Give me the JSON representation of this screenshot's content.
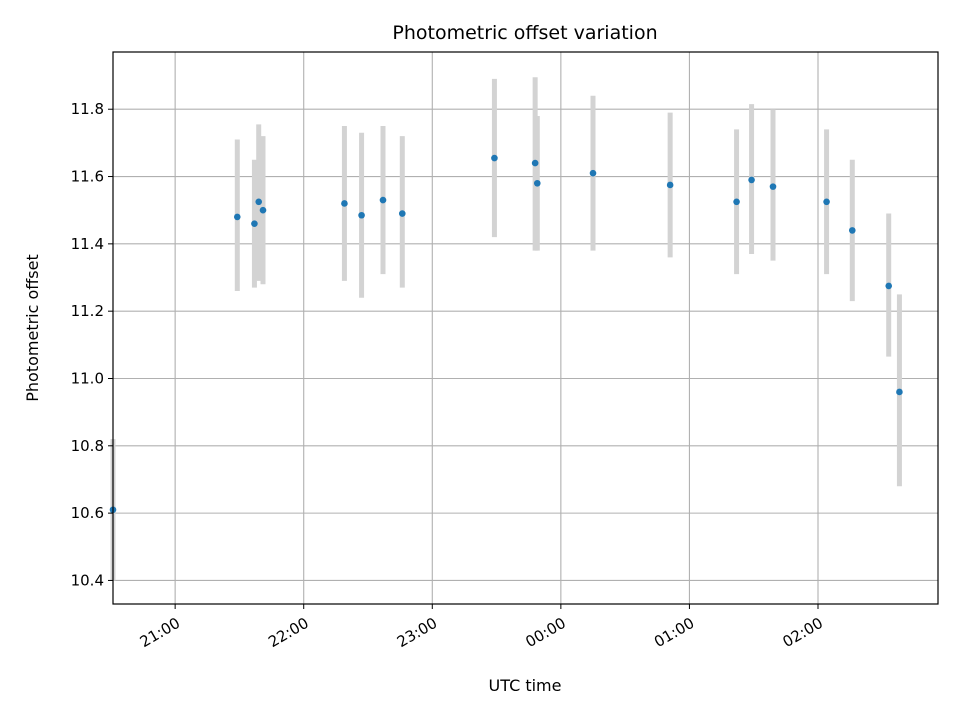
{
  "chart_data": {
    "type": "scatter",
    "title": "Photometric offset variation",
    "xlabel": "UTC time",
    "ylabel": "Photometric offset",
    "grid": true,
    "x_unit": "UTC (clock time, night crossing midnight)",
    "xlim": [
      "20:38",
      "02:56"
    ],
    "xticks": [
      "21:00",
      "22:00",
      "23:00",
      "00:00",
      "01:00",
      "02:00"
    ],
    "ylim": [
      10.33,
      11.97
    ],
    "yticks": [
      "10.4",
      "10.6",
      "10.8",
      "11.0",
      "11.2",
      "11.4",
      "11.6",
      "11.8"
    ],
    "colors": {
      "point": "#1f77b4",
      "errorbar": "#d3d3d3",
      "grid": "#b0b0b0"
    },
    "series": [
      {
        "points": [
          {
            "x": "20:31",
            "y": 10.61,
            "ylow": 10.4,
            "yhigh": 10.82
          },
          {
            "x": "21:29",
            "y": 11.48,
            "ylow": 11.26,
            "yhigh": 11.71
          },
          {
            "x": "21:37",
            "y": 11.46,
            "ylow": 11.27,
            "yhigh": 11.65
          },
          {
            "x": "21:39",
            "y": 11.525,
            "ylow": 11.29,
            "yhigh": 11.755
          },
          {
            "x": "21:41",
            "y": 11.5,
            "ylow": 11.28,
            "yhigh": 11.72
          },
          {
            "x": "22:19",
            "y": 11.52,
            "ylow": 11.29,
            "yhigh": 11.75
          },
          {
            "x": "22:27",
            "y": 11.485,
            "ylow": 11.24,
            "yhigh": 11.73
          },
          {
            "x": "22:37",
            "y": 11.53,
            "ylow": 11.31,
            "yhigh": 11.75
          },
          {
            "x": "22:46",
            "y": 11.49,
            "ylow": 11.27,
            "yhigh": 11.72
          },
          {
            "x": "23:29",
            "y": 11.655,
            "ylow": 11.42,
            "yhigh": 11.89
          },
          {
            "x": "23:48",
            "y": 11.64,
            "ylow": 11.38,
            "yhigh": 11.895
          },
          {
            "x": "23:49",
            "y": 11.58,
            "ylow": 11.38,
            "yhigh": 11.78
          },
          {
            "x": "00:15",
            "y": 11.61,
            "ylow": 11.38,
            "yhigh": 11.84
          },
          {
            "x": "00:51",
            "y": 11.575,
            "ylow": 11.36,
            "yhigh": 11.79
          },
          {
            "x": "01:22",
            "y": 11.525,
            "ylow": 11.31,
            "yhigh": 11.74
          },
          {
            "x": "01:29",
            "y": 11.59,
            "ylow": 11.37,
            "yhigh": 11.815
          },
          {
            "x": "01:39",
            "y": 11.57,
            "ylow": 11.35,
            "yhigh": 11.8
          },
          {
            "x": "02:04",
            "y": 11.525,
            "ylow": 11.31,
            "yhigh": 11.74
          },
          {
            "x": "02:16",
            "y": 11.44,
            "ylow": 11.23,
            "yhigh": 11.65
          },
          {
            "x": "02:33",
            "y": 11.275,
            "ylow": 11.065,
            "yhigh": 11.49
          },
          {
            "x": "02:38",
            "y": 10.96,
            "ylow": 10.68,
            "yhigh": 11.25
          }
        ]
      }
    ]
  }
}
